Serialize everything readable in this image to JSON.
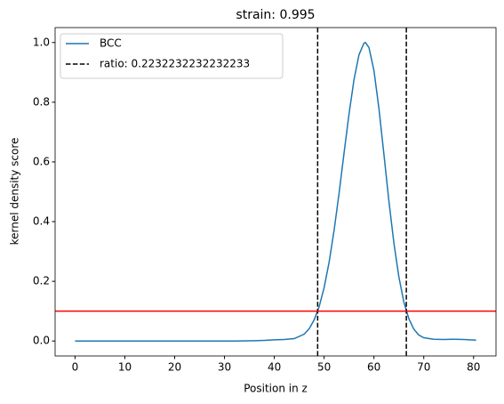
{
  "chart_data": {
    "type": "line",
    "title": "strain: 0.995",
    "xlabel": "Position in z",
    "ylabel": "kernel density score",
    "x": [
      0,
      4,
      8,
      12,
      16,
      20,
      24,
      28,
      32,
      36,
      38,
      40,
      42,
      44,
      46,
      47,
      48,
      49,
      50,
      51,
      52,
      53,
      54,
      55,
      56,
      57,
      58,
      58.3,
      59,
      60,
      61,
      62,
      63,
      64,
      65,
      66,
      67,
      68,
      69,
      70,
      72,
      74,
      76,
      78,
      80.5
    ],
    "series": [
      {
        "name": "BCC",
        "color": "#1f77b4",
        "values": [
          0,
          0,
          0,
          0,
          0,
          0,
          0,
          0,
          0,
          0.001,
          0.002,
          0.004,
          0.005,
          0.008,
          0.023,
          0.041,
          0.071,
          0.115,
          0.179,
          0.264,
          0.371,
          0.495,
          0.63,
          0.761,
          0.876,
          0.959,
          0.998,
          1.0,
          0.983,
          0.906,
          0.779,
          0.626,
          0.469,
          0.329,
          0.215,
          0.131,
          0.075,
          0.04,
          0.02,
          0.011,
          0.006,
          0.005,
          0.006,
          0.005,
          0.003
        ]
      }
    ],
    "vlines": {
      "name": "ratio: 0.2232232232232233",
      "color": "#000000",
      "x": [
        48.7,
        66.5
      ]
    },
    "hline": {
      "color": "#ff0000",
      "y": 0.1
    },
    "xlim": [
      -4,
      84.5
    ],
    "xticks": [
      0,
      10,
      20,
      30,
      40,
      50,
      60,
      70,
      80
    ],
    "ylim": [
      -0.05,
      1.05
    ],
    "yticks": [
      {
        "value": 0,
        "label": "0.0"
      },
      0.2,
      0.4,
      0.6,
      0.8,
      {
        "value": 1,
        "label": "1.0"
      }
    ],
    "legend": "upper left"
  }
}
